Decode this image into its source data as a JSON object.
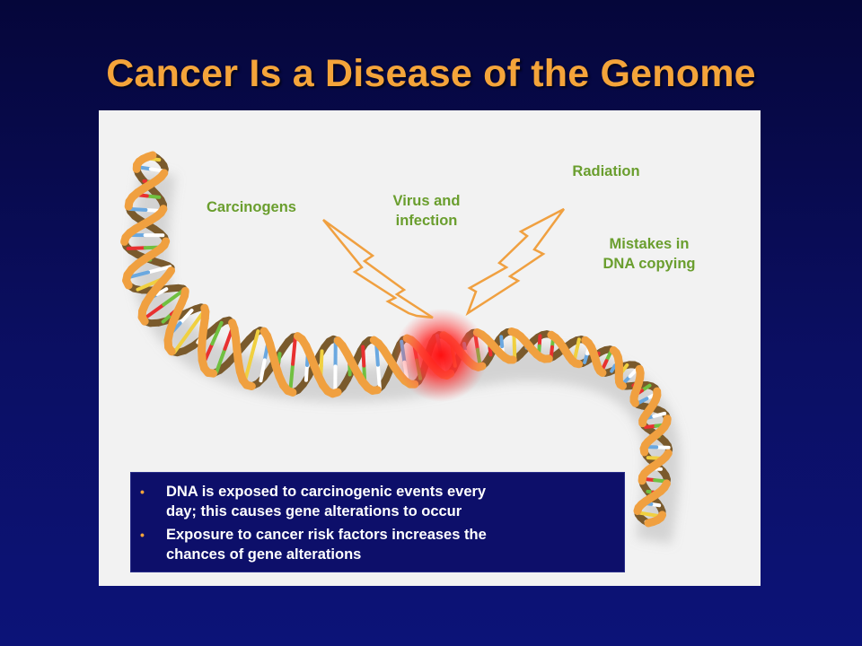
{
  "slide": {
    "title": "Cancer Is a Disease of the Genome"
  },
  "figure": {
    "labels": {
      "carcinogens": "Carcinogens",
      "virus_line1": "Virus and",
      "virus_line2": "infection",
      "radiation": "Radiation",
      "mistakes_line1": "Mistakes in",
      "mistakes_line2": "DNA copying"
    },
    "colors": {
      "label_green": "#6a9e2e",
      "backbone_orange": "#f0a040",
      "backbone_brown": "#7a5a2c",
      "damage_red": "#ff2020"
    }
  },
  "bullets": {
    "marker": "•",
    "items": [
      {
        "line1": "DNA is exposed to carcinogenic events every",
        "line2": "day; this causes gene alterations to occur"
      },
      {
        "line1": "Exposure to cancer risk factors increases the",
        "line2": "chances of gene alterations"
      }
    ]
  }
}
